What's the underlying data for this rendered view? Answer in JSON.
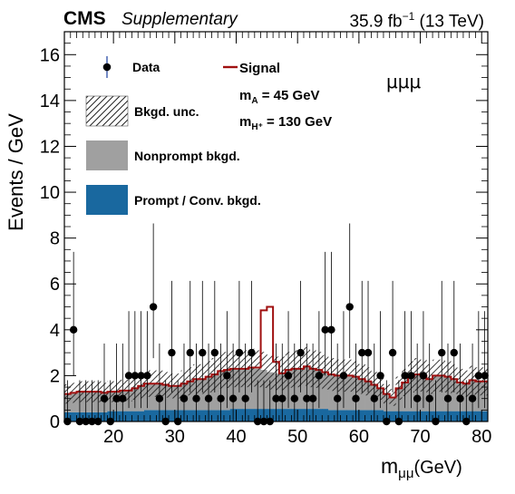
{
  "header": {
    "experiment": "CMS",
    "status": "Supplementary",
    "lumi_value": "35.9 fb",
    "lumi_exp": "−1",
    "energy": " (13 TeV)"
  },
  "legend": {
    "data": "Data",
    "unc": "Bkgd. unc.",
    "nonprompt": "Nonprompt bkgd.",
    "prompt": "Prompt / Conv. bkgd.",
    "signal": "Signal",
    "mA": "m",
    "mA_sub": "A",
    "mA_val": " = 45 GeV",
    "mH": "m",
    "mH_sub": "H⁺",
    "mH_val": " = 130 GeV"
  },
  "channel_label": "μμμ",
  "colors": {
    "signal": "#a01010",
    "nonprompt": "#a0a0a0",
    "prompt": "#19689f",
    "data": "#000000"
  },
  "chart_data": {
    "type": "bar",
    "xlabel": "m",
    "xlabel_sub": "μμ",
    "xlabel_unit": "(GeV)",
    "ylabel": "Events / GeV",
    "xlim": [
      12,
      81
    ],
    "ylim": [
      0,
      17
    ],
    "xticks": [
      20,
      30,
      40,
      50,
      60,
      70,
      80
    ],
    "yticks": [
      0,
      2,
      4,
      6,
      8,
      10,
      12,
      14,
      16
    ],
    "bin_width": 1,
    "bins_low_edge": [
      12,
      13,
      14,
      15,
      16,
      17,
      18,
      19,
      20,
      21,
      22,
      23,
      24,
      25,
      26,
      27,
      28,
      29,
      30,
      31,
      32,
      33,
      34,
      35,
      36,
      37,
      38,
      39,
      40,
      41,
      42,
      43,
      44,
      45,
      46,
      47,
      48,
      49,
      50,
      51,
      52,
      53,
      54,
      55,
      56,
      57,
      58,
      59,
      60,
      61,
      62,
      63,
      64,
      65,
      66,
      67,
      68,
      69,
      70,
      71,
      72,
      73,
      74,
      75,
      76,
      77,
      78,
      79,
      80
    ],
    "series": [
      {
        "name": "Prompt/Conv. bkgd.",
        "kind": "stack",
        "values": [
          0.4,
          0.4,
          0.4,
          0.4,
          0.4,
          0.4,
          0.4,
          0.45,
          0.45,
          0.45,
          0.45,
          0.45,
          0.45,
          0.5,
          0.5,
          0.5,
          0.5,
          0.5,
          0.5,
          0.5,
          0.5,
          0.5,
          0.5,
          0.5,
          0.5,
          0.5,
          0.5,
          0.55,
          0.55,
          0.55,
          0.55,
          0.55,
          0.55,
          0.55,
          0.55,
          0.55,
          0.55,
          0.55,
          0.55,
          0.55,
          0.55,
          0.55,
          0.55,
          0.5,
          0.5,
          0.5,
          0.5,
          0.5,
          0.5,
          0.5,
          0.5,
          0.5,
          0.45,
          0.45,
          0.45,
          0.45,
          0.45,
          0.45,
          0.45,
          0.45,
          0.45,
          0.45,
          0.45,
          0.45,
          0.45,
          0.45,
          0.45,
          0.45,
          0.45
        ]
      },
      {
        "name": "Nonprompt bkgd.",
        "kind": "stack",
        "values": [
          0.8,
          0.85,
          0.9,
          0.9,
          0.9,
          0.9,
          0.85,
          0.85,
          0.85,
          0.9,
          0.9,
          1.0,
          1.1,
          1.15,
          1.15,
          1.15,
          1.1,
          1.05,
          1.05,
          1.15,
          1.25,
          1.35,
          1.35,
          1.45,
          1.55,
          1.7,
          1.75,
          1.75,
          1.75,
          1.75,
          1.8,
          1.75,
          1.7,
          1.6,
          1.55,
          1.55,
          1.7,
          1.75,
          1.75,
          1.85,
          1.75,
          1.7,
          1.6,
          1.55,
          1.5,
          1.5,
          1.5,
          1.45,
          1.35,
          1.25,
          1.1,
          0.95,
          0.75,
          0.6,
          1.0,
          1.25,
          1.5,
          1.6,
          1.55,
          1.4,
          1.55,
          1.55,
          1.5,
          1.4,
          1.25,
          1.2,
          1.35,
          1.3,
          1.3
        ]
      },
      {
        "name": "Signal",
        "kind": "overlay",
        "values": [
          0,
          0,
          0,
          0,
          0,
          0,
          0,
          0,
          0,
          0,
          0,
          0,
          0,
          0,
          0,
          0,
          0,
          0,
          0,
          0,
          0,
          0,
          0,
          0,
          0,
          0,
          0,
          0,
          0,
          0,
          0,
          0.05,
          2.6,
          2.85,
          0.5,
          0,
          0,
          0,
          0,
          0,
          0,
          0,
          0,
          0,
          0,
          0,
          0,
          0,
          0,
          0,
          0,
          0,
          0,
          0,
          0,
          0,
          0,
          0,
          0,
          0,
          0,
          0,
          0,
          0,
          0,
          0,
          0,
          0,
          0
        ]
      }
    ],
    "data_points": {
      "name": "Data",
      "x": [
        12.5,
        13.5,
        14.5,
        15.5,
        16.5,
        17.5,
        18.5,
        19.5,
        20.5,
        21.5,
        22.5,
        23.5,
        24.5,
        25.5,
        26.5,
        27.5,
        28.5,
        29.5,
        30.5,
        31.5,
        32.5,
        33.5,
        34.5,
        35.5,
        36.5,
        37.5,
        38.5,
        39.5,
        40.5,
        41.5,
        42.5,
        43.5,
        44.5,
        45.5,
        46.5,
        47.5,
        48.5,
        49.5,
        50.5,
        51.5,
        52.5,
        53.5,
        54.5,
        55.5,
        56.5,
        57.5,
        58.5,
        59.5,
        60.5,
        61.5,
        62.5,
        63.5,
        64.5,
        65.5,
        66.5,
        67.5,
        68.5,
        69.5,
        70.5,
        71.5,
        72.5,
        73.5,
        74.5,
        75.5,
        76.5,
        77.5,
        78.5,
        79.5,
        80.5
      ],
      "y": [
        0,
        4,
        0,
        0,
        0,
        0,
        1,
        0,
        1,
        1,
        2,
        2,
        2,
        2,
        5,
        1,
        0,
        3,
        0,
        1,
        3,
        1,
        3,
        1,
        3,
        1,
        2,
        1,
        3,
        1,
        3,
        0,
        0,
        0,
        1,
        1,
        2,
        1,
        3,
        1,
        1,
        2,
        4,
        4,
        1,
        2,
        5,
        1,
        3,
        3,
        1,
        2,
        0,
        3,
        0,
        2,
        2,
        1,
        2,
        1,
        0,
        3,
        1,
        3,
        1,
        0,
        1,
        2,
        2
      ]
    }
  }
}
